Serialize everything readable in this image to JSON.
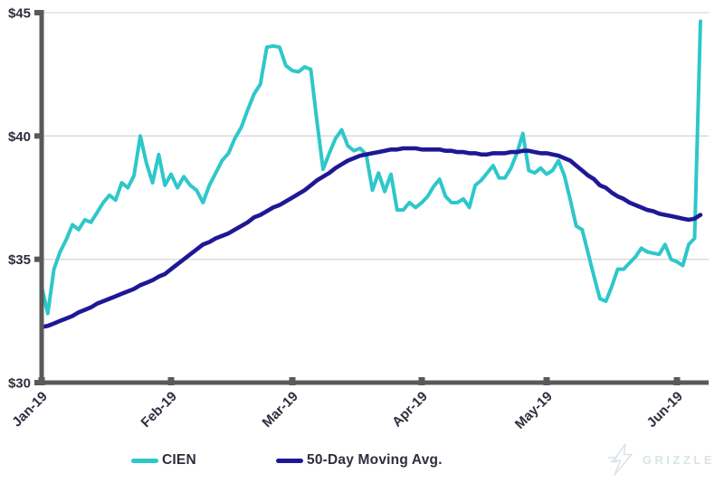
{
  "page": {
    "background": "#ffffff"
  },
  "branding": {
    "logo_text": "GRIZZLE",
    "logo_color": "#d9e4e8"
  },
  "axes": {
    "axis_color": "#595959",
    "gridline_color": "#d9d9d9",
    "label_color": "#2e2e3e"
  },
  "chart_data": {
    "type": "line",
    "title": "",
    "xlabel": "",
    "ylabel": "",
    "grid": "horizontal",
    "legend_position": "bottom",
    "ylim": [
      30,
      45
    ],
    "y_tick_labels": [
      "$30",
      "$35",
      "$40",
      "$45"
    ],
    "y_tick_values": [
      30,
      35,
      40,
      45
    ],
    "x_tick_labels": [
      "Jan-19",
      "Feb-19",
      "Mar-19",
      "Apr-19",
      "May-19",
      "Jun-19"
    ],
    "x_tick_day_index": [
      0,
      21,
      40,
      61,
      82,
      104
    ],
    "series": [
      {
        "name": "CIEN",
        "color": "#2ec7ca",
        "values": [
          33.9,
          32.8,
          34.6,
          35.3,
          35.8,
          36.4,
          36.2,
          36.6,
          36.5,
          36.9,
          37.3,
          37.6,
          37.4,
          38.1,
          37.9,
          38.4,
          40.0,
          38.9,
          38.1,
          39.25,
          38.0,
          38.45,
          37.9,
          38.35,
          38.0,
          37.8,
          37.3,
          38.0,
          38.5,
          39.0,
          39.3,
          39.9,
          40.35,
          41.05,
          41.7,
          42.1,
          43.6,
          43.65,
          43.6,
          42.85,
          42.65,
          42.6,
          42.8,
          42.7,
          40.6,
          38.65,
          39.3,
          39.9,
          40.25,
          39.6,
          39.4,
          39.5,
          39.25,
          37.8,
          38.5,
          37.75,
          38.45,
          37.0,
          37.0,
          37.3,
          37.1,
          37.3,
          37.55,
          37.95,
          38.25,
          37.55,
          37.3,
          37.3,
          37.45,
          37.1,
          38.0,
          38.2,
          38.5,
          38.8,
          38.3,
          38.3,
          38.7,
          39.3,
          40.1,
          38.6,
          38.5,
          38.7,
          38.45,
          38.6,
          39.0,
          38.4,
          37.4,
          36.35,
          36.2,
          35.25,
          34.3,
          33.4,
          33.3,
          33.9,
          34.6,
          34.6,
          34.85,
          35.1,
          35.45,
          35.3,
          35.25,
          35.2,
          35.6,
          35.0,
          34.9,
          34.75,
          35.6,
          35.85,
          44.65
        ]
      },
      {
        "name": "50-Day Moving Avg.",
        "color": "#1e1896",
        "values": [
          32.25,
          32.3,
          32.4,
          32.5,
          32.6,
          32.7,
          32.85,
          32.95,
          33.05,
          33.2,
          33.3,
          33.4,
          33.5,
          33.6,
          33.7,
          33.8,
          33.95,
          34.05,
          34.15,
          34.3,
          34.4,
          34.6,
          34.8,
          35.0,
          35.2,
          35.4,
          35.6,
          35.7,
          35.85,
          35.95,
          36.05,
          36.2,
          36.35,
          36.5,
          36.7,
          36.8,
          36.95,
          37.1,
          37.2,
          37.35,
          37.5,
          37.65,
          37.8,
          38.0,
          38.2,
          38.35,
          38.5,
          38.7,
          38.85,
          39.0,
          39.1,
          39.2,
          39.25,
          39.3,
          39.35,
          39.4,
          39.45,
          39.45,
          39.5,
          39.5,
          39.5,
          39.45,
          39.45,
          39.45,
          39.45,
          39.4,
          39.4,
          39.35,
          39.35,
          39.3,
          39.3,
          39.25,
          39.25,
          39.3,
          39.3,
          39.3,
          39.35,
          39.35,
          39.4,
          39.4,
          39.35,
          39.3,
          39.3,
          39.25,
          39.2,
          39.1,
          39.0,
          38.8,
          38.6,
          38.4,
          38.25,
          38.0,
          37.9,
          37.7,
          37.55,
          37.45,
          37.3,
          37.2,
          37.1,
          37.0,
          36.95,
          36.85,
          36.8,
          36.75,
          36.7,
          36.65,
          36.6,
          36.65,
          36.8
        ]
      }
    ]
  }
}
